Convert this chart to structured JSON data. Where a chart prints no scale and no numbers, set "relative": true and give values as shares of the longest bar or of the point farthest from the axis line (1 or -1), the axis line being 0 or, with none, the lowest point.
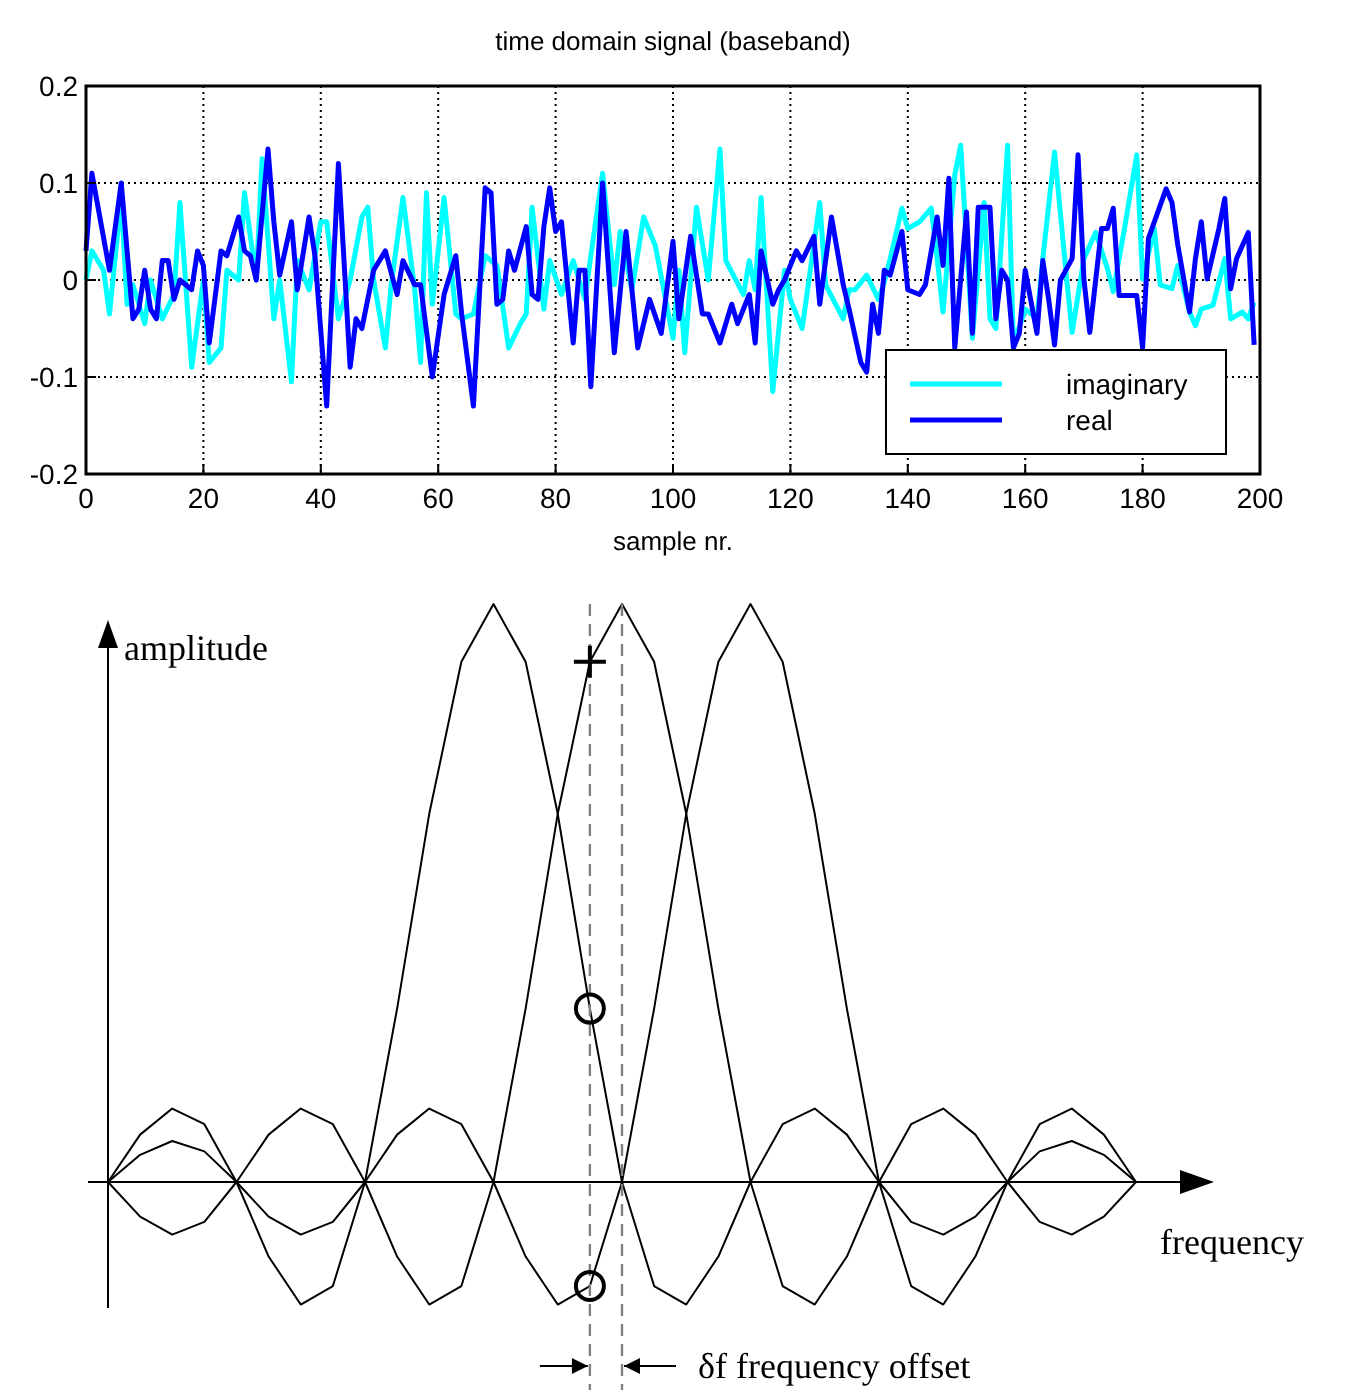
{
  "chart_data": [
    {
      "type": "line",
      "title": "time domain signal (baseband)",
      "xlabel": "sample nr.",
      "xlim": [
        0,
        200
      ],
      "xticks": [
        0,
        20,
        40,
        60,
        80,
        100,
        120,
        140,
        160,
        180,
        200
      ],
      "ylim": [
        -0.2,
        0.2
      ],
      "yticks": [
        -0.2,
        -0.1,
        0,
        0.1,
        0.2
      ],
      "grid": true,
      "legend": "bottom right",
      "series": [
        {
          "name": "imaginary",
          "color": "#00ffff",
          "x": [
            0,
            1,
            3,
            4,
            6,
            7,
            8,
            10,
            11,
            13,
            15,
            16,
            18,
            20,
            21,
            23,
            24,
            26,
            27,
            29,
            30,
            32,
            33,
            35,
            36,
            38,
            40,
            41,
            43,
            45,
            47,
            48,
            49,
            51,
            52,
            54,
            56,
            57,
            58,
            59,
            61,
            63,
            64,
            66,
            68,
            70,
            72,
            74,
            75,
            76,
            78,
            79,
            81,
            83,
            85,
            86,
            88,
            90,
            91,
            93,
            95,
            97,
            100,
            101,
            102,
            104,
            106,
            108,
            109,
            112,
            113,
            114,
            115,
            117,
            119,
            120,
            122,
            125,
            126,
            129,
            130,
            131,
            133,
            135,
            136,
            137,
            139,
            140,
            142,
            144,
            145,
            146,
            148,
            149,
            151,
            153,
            154,
            155,
            157,
            158,
            160,
            162,
            163,
            165,
            167,
            168,
            170,
            172,
            174,
            175,
            177,
            179,
            180,
            182,
            183,
            185,
            186,
            188,
            189,
            190,
            192,
            194,
            195,
            197,
            198,
            199
          ],
          "values": [
            0,
            0.03,
            0.01,
            -0.035,
            0.085,
            -0.025,
            -0.005,
            -0.045,
            0,
            -0.04,
            -0.015,
            0.08,
            -0.09,
            0,
            -0.085,
            -0.07,
            0.01,
            0,
            0.09,
            0,
            0.125,
            -0.04,
            0,
            -0.105,
            0.02,
            -0.01,
            0.06,
            0.06,
            -0.04,
            0,
            0.065,
            0.075,
            0,
            -0.07,
            -0.005,
            0.085,
            -0.01,
            -0.085,
            0.09,
            -0.025,
            0.085,
            -0.035,
            -0.04,
            -0.035,
            0.025,
            0.015,
            -0.07,
            -0.045,
            -0.035,
            0.075,
            -0.03,
            0.02,
            -0.015,
            0.02,
            -0.02,
            0.025,
            0.11,
            -0.005,
            0.05,
            -0.01,
            0.065,
            0.035,
            -0.06,
            0.01,
            -0.075,
            0.075,
            0,
            0.135,
            0.02,
            -0.015,
            0.02,
            -0.01,
            0.085,
            -0.115,
            0.01,
            -0.02,
            -0.05,
            0.08,
            -0.005,
            -0.04,
            -0.01,
            -0.01,
            0.005,
            -0.02,
            -0.002,
            0.022,
            0.074,
            0.053,
            0.06,
            0.074,
            0.022,
            -0.033,
            0.108,
            0.139,
            -0.06,
            0.08,
            -0.04,
            -0.05,
            0.139,
            -0.067,
            -0.03,
            -0.04,
            0.022,
            0.132,
            0.005,
            -0.054,
            0.022,
            0.049,
            0.012,
            -0.012,
            0.056,
            0.129,
            0.001,
            0.053,
            -0.005,
            -0.009,
            0.015,
            -0.033,
            -0.047,
            -0.03,
            -0.026,
            0.022,
            -0.04,
            -0.033,
            -0.04,
            -0.023
          ]
        },
        {
          "name": "real",
          "color": "#0000ff",
          "x": [
            0,
            1,
            4,
            6,
            8,
            9,
            10,
            11,
            12,
            13,
            14,
            15,
            16,
            18,
            19,
            20,
            21,
            23,
            24,
            26,
            27,
            28,
            29,
            31,
            32,
            33,
            35,
            36,
            38,
            39,
            41,
            43,
            44,
            45,
            46,
            47,
            49,
            51,
            53,
            54,
            56,
            57,
            59,
            61,
            63,
            64,
            66,
            68,
            69,
            70,
            71,
            72,
            73,
            75,
            76,
            77,
            78,
            79,
            80,
            81,
            83,
            84,
            85,
            86,
            88,
            90,
            92,
            94,
            96,
            98,
            100,
            101,
            103,
            105,
            106,
            108,
            110,
            111,
            113,
            114,
            115,
            117,
            118,
            119,
            121,
            122,
            124,
            125,
            127,
            129,
            130,
            132,
            133,
            134,
            135,
            136,
            137,
            139,
            140,
            142,
            143,
            145,
            146,
            147,
            148,
            150,
            151,
            152,
            154,
            155,
            156,
            157,
            158,
            159,
            160,
            162,
            163,
            164,
            165,
            166,
            168,
            169,
            170,
            171,
            173,
            174,
            175,
            176,
            178,
            179,
            180,
            181,
            182,
            184,
            185,
            186,
            188,
            189,
            190,
            191,
            193,
            194,
            195,
            196,
            198,
            199
          ],
          "values": [
            0.03,
            0.11,
            0.01,
            0.1,
            -0.04,
            -0.03,
            0.01,
            -0.03,
            -0.04,
            0.02,
            0.02,
            -0.02,
            0,
            -0.01,
            0.03,
            0.015,
            -0.065,
            0.03,
            0.025,
            0.065,
            0.03,
            0.025,
            0,
            0.135,
            0.06,
            0.005,
            0.06,
            -0.01,
            0.065,
            0.025,
            -0.13,
            0.12,
            0.015,
            -0.09,
            -0.04,
            -0.05,
            0.01,
            0.03,
            -0.015,
            0.02,
            -0.005,
            -0.005,
            -0.1,
            -0.015,
            0.025,
            -0.035,
            -0.13,
            0.095,
            0.09,
            -0.025,
            -0.02,
            0.03,
            0.01,
            0.055,
            -0.015,
            -0.02,
            0.055,
            0.095,
            0.05,
            0.06,
            -0.065,
            0.01,
            0.01,
            -0.11,
            0.1,
            -0.075,
            0.05,
            -0.07,
            -0.02,
            -0.055,
            0.04,
            -0.04,
            0.045,
            -0.035,
            -0.035,
            -0.065,
            -0.025,
            -0.045,
            -0.015,
            -0.065,
            0.03,
            -0.025,
            -0.01,
            0,
            0.03,
            0.02,
            0.045,
            -0.025,
            0.065,
            -0.005,
            -0.03,
            -0.085,
            -0.095,
            -0.025,
            -0.055,
            0.01,
            0.005,
            0.05,
            -0.01,
            -0.015,
            -0.005,
            0.065,
            0.015,
            0.105,
            -0.07,
            0.07,
            -0.055,
            0.075,
            0.075,
            -0.04,
            0.01,
            0,
            -0.07,
            -0.055,
            0.01,
            -0.055,
            0.02,
            -0.02,
            -0.067,
            0,
            0.022,
            0.129,
            0.001,
            -0.054,
            0.053,
            0.053,
            0.074,
            -0.016,
            -0.016,
            -0.016,
            -0.07,
            0.043,
            0.06,
            0.094,
            0.08,
            0.036,
            -0.033,
            0.022,
            0.06,
            0.001,
            0.053,
            0.084,
            -0.009,
            0.022,
            0.049,
            -0.067
          ]
        }
      ]
    },
    {
      "type": "line",
      "relative": true,
      "xlabel": "frequency",
      "ylabel": "amplitude",
      "categories": [
        null,
        null,
        null,
        null,
        null,
        null,
        null,
        null,
        null,
        null,
        null,
        null,
        null,
        null,
        null,
        null,
        null,
        null,
        null,
        null,
        null,
        null,
        null,
        null,
        null,
        null,
        null,
        null,
        null,
        null,
        null,
        null,
        null
      ],
      "series": [
        {
          "color": "#000000",
          "values": [
            0,
            0.082,
            0.127,
            0.1,
            0,
            -0.129,
            -0.212,
            -0.18,
            0,
            0.3,
            0.637,
            0.9,
            1,
            0.9,
            0.637,
            0.3,
            0,
            -0.18,
            -0.212,
            -0.129,
            0,
            0.1,
            0.127,
            0.082,
            0,
            -0.069,
            -0.091,
            -0.06,
            0,
            0.053,
            0.071,
            0.047,
            0
          ]
        },
        {
          "color": "#000000",
          "values": [
            0,
            -0.06,
            -0.091,
            -0.069,
            0,
            0.082,
            0.127,
            0.1,
            0,
            -0.129,
            -0.212,
            -0.18,
            0,
            0.3,
            0.637,
            0.9,
            1,
            0.9,
            0.637,
            0.3,
            0,
            -0.18,
            -0.212,
            -0.129,
            0,
            0.1,
            0.127,
            0.082,
            0,
            -0.069,
            -0.091,
            -0.06,
            0
          ]
        },
        {
          "color": "#000000",
          "values": [
            0,
            0.047,
            0.071,
            0.053,
            0,
            -0.06,
            -0.091,
            -0.069,
            0,
            0.082,
            0.127,
            0.1,
            0,
            -0.129,
            -0.212,
            -0.18,
            0,
            0.3,
            0.637,
            0.9,
            1,
            0.9,
            0.637,
            0.3,
            0,
            -0.18,
            -0.212,
            -0.129,
            0,
            0.1,
            0.127,
            0.082,
            0
          ]
        }
      ],
      "annotations": [
        "δf frequency offset"
      ]
    }
  ]
}
